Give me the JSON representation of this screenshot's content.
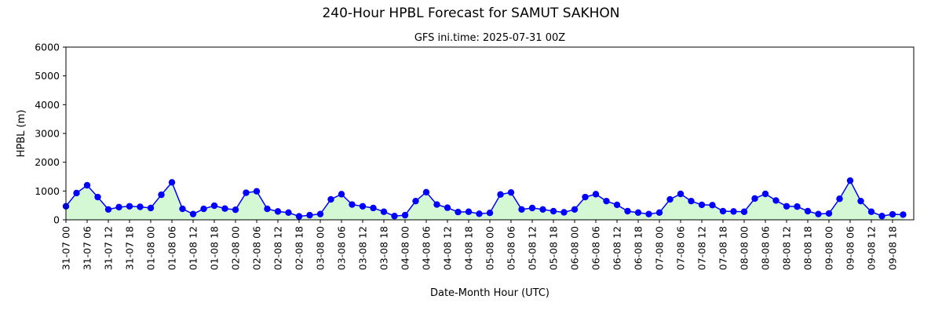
{
  "chart_data": {
    "type": "line",
    "title": "240-Hour HPBL Forecast for SAMUT SAKHON",
    "subtitle": "GFS ini.time: 2025-07-31 00Z",
    "xlabel": "Date-Month Hour (UTC)",
    "ylabel": "HPBL (m)",
    "ylim": [
      0,
      6000
    ],
    "yticks": [
      0,
      1000,
      2000,
      3000,
      4000,
      5000,
      6000
    ],
    "x_step_hours": 3,
    "xlim_hours": [
      0,
      240
    ],
    "xtick_labels": [
      "31-07 00",
      "31-07 06",
      "31-07 12",
      "31-07 18",
      "01-08 00",
      "01-08 06",
      "01-08 12",
      "01-08 18",
      "02-08 00",
      "02-08 06",
      "02-08 12",
      "02-08 18",
      "03-08 00",
      "03-08 06",
      "03-08 12",
      "03-08 18",
      "04-08 00",
      "04-08 06",
      "04-08 12",
      "04-08 18",
      "05-08 00",
      "05-08 06",
      "05-08 12",
      "05-08 18",
      "06-08 00",
      "06-08 06",
      "06-08 12",
      "06-08 18",
      "07-08 00",
      "07-08 06",
      "07-08 12",
      "07-08 18",
      "08-08 00",
      "08-08 06",
      "08-08 12",
      "08-08 18",
      "09-08 00",
      "09-08 06",
      "09-08 12",
      "09-08 18"
    ],
    "grid": false,
    "line_color": "#0000ff",
    "fill_color": "#d4f7d4",
    "values": [
      470,
      930,
      1200,
      790,
      360,
      440,
      470,
      450,
      410,
      870,
      1300,
      380,
      200,
      380,
      490,
      390,
      350,
      940,
      990,
      380,
      290,
      250,
      120,
      160,
      200,
      710,
      890,
      530,
      470,
      410,
      280,
      130,
      160,
      650,
      960,
      530,
      420,
      270,
      280,
      210,
      240,
      880,
      950,
      360,
      410,
      360,
      300,
      260,
      360,
      790,
      890,
      650,
      520,
      300,
      250,
      200,
      250,
      710,
      900,
      650,
      520,
      510,
      300,
      290,
      280,
      740,
      900,
      670,
      470,
      460,
      300,
      200,
      220,
      730,
      1360,
      650,
      280,
      130,
      190,
      180
    ]
  }
}
